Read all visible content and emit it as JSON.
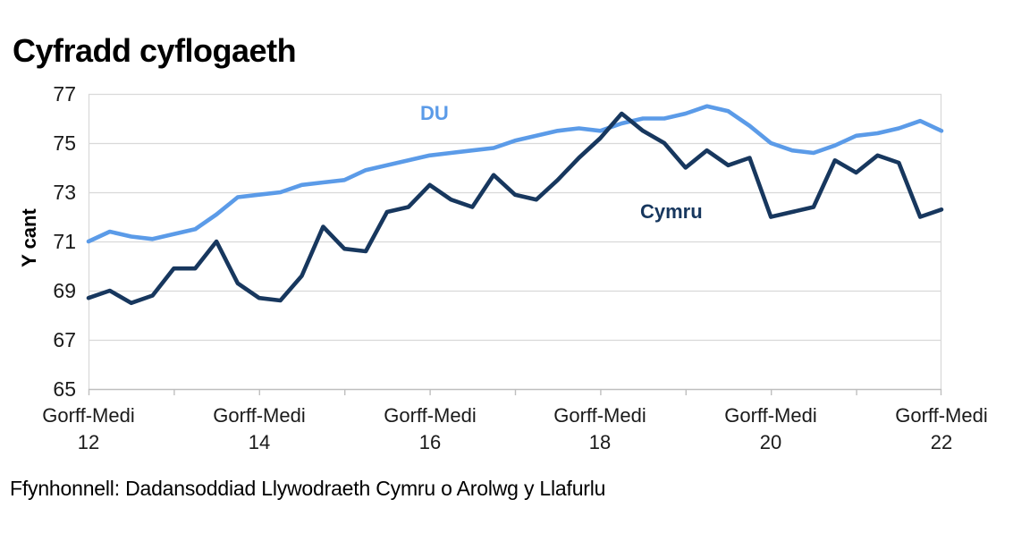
{
  "title": "Cyfradd cyflogaeth",
  "footer": "Ffynhonnell: Dadansoddiad Llywodraeth Cymru o Arolwg y Llafurlu",
  "colors": {
    "du_line": "#5b9be8",
    "cymru_line": "#17375e",
    "gridline": "#d9d9d9",
    "axis": "#bfbfbf",
    "text": "#000000"
  },
  "chart_data": {
    "type": "line",
    "title": "Cyfradd cyflogaeth",
    "xlabel": "",
    "ylabel": "Y cant",
    "ylim": [
      65,
      77
    ],
    "grid": "horizontal",
    "legend_position": "inline-labels",
    "x_start": "Gorff-Medi 2012",
    "x_end": "Gorff-Medi 2022",
    "x_interval": "chwarterol",
    "y_axis": {
      "ticks": [
        65,
        67,
        69,
        71,
        73,
        75,
        77
      ],
      "ticks_display": [
        "77",
        "75",
        "73",
        "71",
        "69",
        "67",
        "65"
      ]
    },
    "x_ticks": [
      {
        "l1": "Gorff-Medi",
        "l2": "12"
      },
      {
        "l1": "Gorff-Medi",
        "l2": "14"
      },
      {
        "l1": "Gorff-Medi",
        "l2": "16"
      },
      {
        "l1": "Gorff-Medi",
        "l2": "18"
      },
      {
        "l1": "Gorff-Medi",
        "l2": "20"
      },
      {
        "l1": "Gorff-Medi",
        "l2": "22"
      }
    ],
    "series": [
      {
        "name": "DU",
        "color": "#5b9be8",
        "values": [
          71.0,
          71.4,
          71.2,
          71.1,
          71.3,
          71.5,
          72.1,
          72.8,
          72.9,
          73.0,
          73.3,
          73.4,
          73.5,
          73.9,
          74.1,
          74.3,
          74.5,
          74.6,
          74.7,
          74.8,
          75.1,
          75.3,
          75.5,
          75.6,
          75.5,
          75.8,
          76.0,
          76.0,
          76.2,
          76.5,
          76.3,
          75.7,
          75.0,
          74.7,
          74.6,
          74.9,
          75.3,
          75.4,
          75.6,
          75.9,
          75.5
        ]
      },
      {
        "name": "Cymru",
        "color": "#17375e",
        "values": [
          68.7,
          69.0,
          68.5,
          68.8,
          69.9,
          69.9,
          71.0,
          69.3,
          68.7,
          68.6,
          69.6,
          71.6,
          70.7,
          70.6,
          72.2,
          72.4,
          73.3,
          72.7,
          72.4,
          73.7,
          72.9,
          72.7,
          73.5,
          74.4,
          75.2,
          76.2,
          75.5,
          75.0,
          74.0,
          74.7,
          74.1,
          74.4,
          72.0,
          72.2,
          72.4,
          74.3,
          73.8,
          74.5,
          74.2,
          72.0,
          72.3
        ]
      }
    ]
  }
}
